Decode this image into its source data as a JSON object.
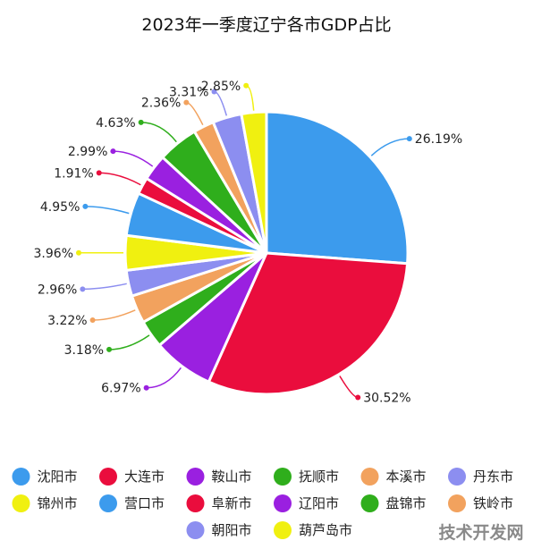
{
  "chart_data": {
    "type": "pie",
    "title": "2023年一季度辽宁各市GDP占比",
    "series": [
      {
        "name": "沈阳市",
        "value": 26.19,
        "label": "26.19%",
        "color": "#3c9bed"
      },
      {
        "name": "大连市",
        "value": 30.52,
        "label": "30.52%",
        "color": "#ea0d3d"
      },
      {
        "name": "鞍山市",
        "value": 6.97,
        "label": "6.97%",
        "color": "#9a20e0"
      },
      {
        "name": "抚顺市",
        "value": 3.18,
        "label": "3.18%",
        "color": "#2fae1c"
      },
      {
        "name": "本溪市",
        "value": 3.22,
        "label": "3.22%",
        "color": "#f2a25e"
      },
      {
        "name": "丹东市",
        "value": 2.96,
        "label": "2.96%",
        "color": "#8c8ef0"
      },
      {
        "name": "锦州市",
        "value": 3.96,
        "label": "3.96%",
        "color": "#f0f010"
      },
      {
        "name": "营口市",
        "value": 4.95,
        "label": "4.95%",
        "color": "#3c9bed"
      },
      {
        "name": "阜新市",
        "value": 1.91,
        "label": "1.91%",
        "color": "#ea0d3d"
      },
      {
        "name": "辽阳市",
        "value": 2.99,
        "label": "2.99%",
        "color": "#9a20e0"
      },
      {
        "name": "盘锦市",
        "value": 4.63,
        "label": "4.63%",
        "color": "#2fae1c"
      },
      {
        "name": "铁岭市",
        "value": 2.36,
        "label": "2.36%",
        "color": "#f2a25e"
      },
      {
        "name": "朝阳市",
        "value": 3.31,
        "label": "3.31%",
        "color": "#8c8ef0"
      },
      {
        "name": "葫芦岛市",
        "value": 2.85,
        "label": "2.85%",
        "color": "#f0f010"
      }
    ],
    "legend_position": "bottom"
  },
  "watermark": "技术开发网"
}
